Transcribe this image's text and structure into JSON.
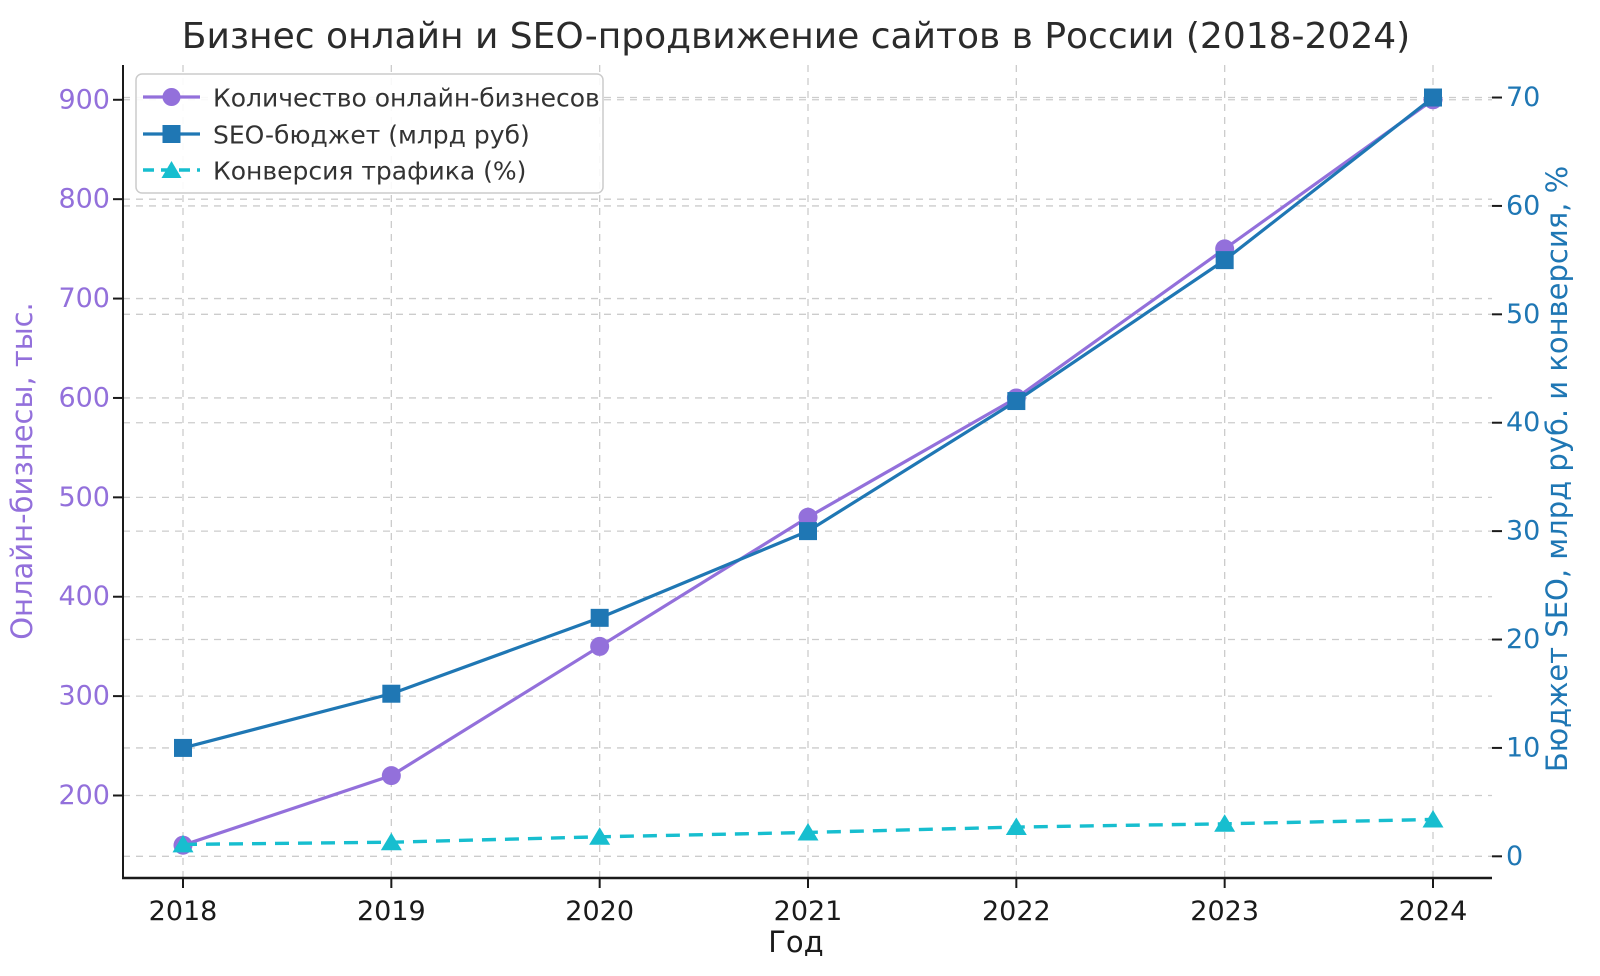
{
  "chart_data": {
    "type": "line",
    "title": "Бизнес онлайн и SEO-продвижение сайтов в России (2018-2024)",
    "xlabel": "Год",
    "ylabel_left": "Онлайн-бизнесы, тыс.",
    "ylabel_right": "Бюджет SEO, млрд руб. и конверсия, %",
    "x_categories": [
      "2018",
      "2019",
      "2020",
      "2021",
      "2022",
      "2023",
      "2024"
    ],
    "series": [
      {
        "name": "Количество онлайн-бизнесов",
        "axis": "left",
        "color": "#9370db",
        "marker": "circle",
        "linestyle": "solid",
        "values": [
          150,
          220,
          350,
          480,
          600,
          750,
          900
        ]
      },
      {
        "name": "SEO-бюджет (млрд руб)",
        "axis": "right",
        "color": "#1f77b4",
        "marker": "square",
        "linestyle": "solid",
        "values": [
          10,
          15,
          22,
          30,
          42,
          55,
          70
        ]
      },
      {
        "name": "Конверсия трафика (%)",
        "axis": "right",
        "color": "#17becf",
        "marker": "triangle",
        "linestyle": "dashed",
        "values": [
          1.1,
          1.3,
          1.8,
          2.2,
          2.7,
          3.0,
          3.4
        ]
      }
    ],
    "left_axis": {
      "ticks": [
        200,
        300,
        400,
        500,
        600,
        700,
        800,
        900
      ],
      "range": [
        117,
        935
      ]
    },
    "right_axis": {
      "ticks": [
        0,
        10,
        20,
        30,
        40,
        50,
        60,
        70
      ],
      "range": [
        -2,
        73
      ]
    },
    "grid": true,
    "legend_position": "upper left",
    "colors": {
      "left_accent": "#9370db",
      "right_accent": "#1f77b4",
      "cyan_accent": "#17becf",
      "grid": "#cccccc",
      "spine": "#1a1a1a",
      "title": "#2b2b2b",
      "legend_text": "#333333"
    }
  }
}
